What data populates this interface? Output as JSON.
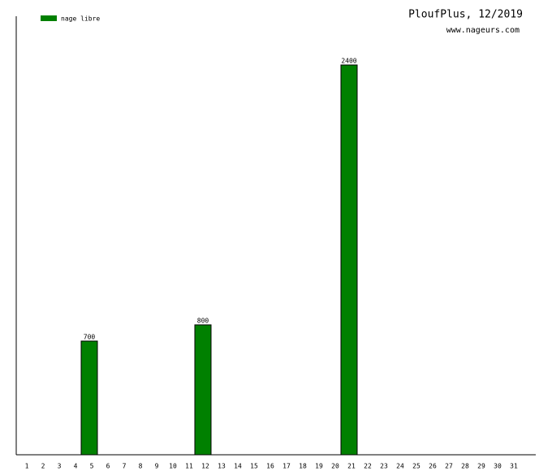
{
  "chart_data": {
    "type": "bar",
    "title": "PloufPlus, 12/2019",
    "subtitle": "www.nageurs.com",
    "categories": [
      "1",
      "2",
      "3",
      "4",
      "5",
      "6",
      "7",
      "8",
      "9",
      "10",
      "11",
      "12",
      "13",
      "14",
      "15",
      "16",
      "17",
      "18",
      "19",
      "20",
      "21",
      "22",
      "23",
      "24",
      "25",
      "26",
      "27",
      "28",
      "29",
      "30",
      "31"
    ],
    "series": [
      {
        "name": "nage libre",
        "color": "#008000",
        "values": [
          null,
          null,
          null,
          null,
          700,
          null,
          null,
          null,
          null,
          null,
          null,
          800,
          null,
          null,
          null,
          null,
          null,
          null,
          null,
          null,
          2400,
          null,
          null,
          null,
          null,
          null,
          null,
          null,
          null,
          null,
          null
        ]
      }
    ],
    "ylim": [
      0,
      2700
    ],
    "legend": "top-left"
  }
}
